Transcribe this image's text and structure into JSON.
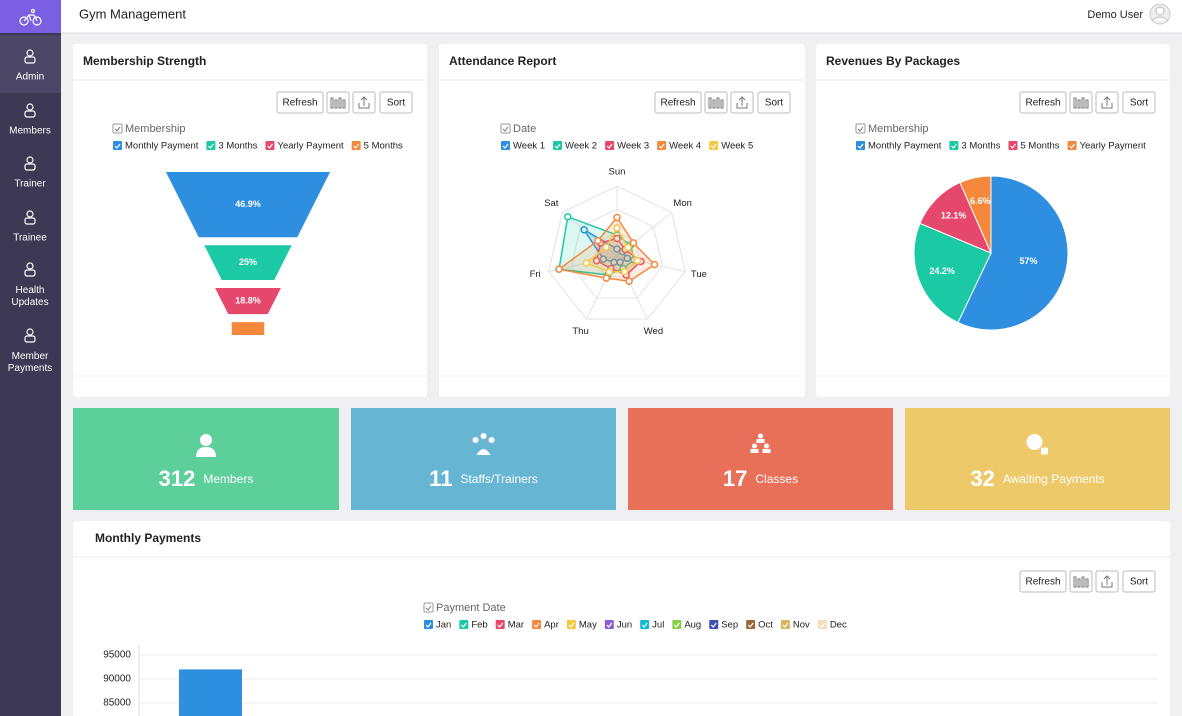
{
  "app": {
    "title": "Gym Management",
    "user": "Demo User"
  },
  "sidebar": [
    {
      "label": "Admin",
      "active": true
    },
    {
      "label": "Members",
      "active": false
    },
    {
      "label": "Trainer",
      "active": false
    },
    {
      "label": "Trainee",
      "active": false
    },
    {
      "label": "Health Updates",
      "active": false
    },
    {
      "label": "Member Payments",
      "active": false
    }
  ],
  "toolbars": [
    [
      "Refresh",
      "Sort"
    ],
    [
      "Refresh",
      "Sort"
    ],
    [
      "Refresh",
      "Sort"
    ],
    [
      "Refresh",
      "Sort"
    ]
  ],
  "chart_data": [
    {
      "type": "funnel",
      "title": "Membership Strength",
      "legend_title": "Membership",
      "categories": [
        "Monthly Payment",
        "3 Months",
        "Yearly Payment",
        "5 Months"
      ],
      "colors": [
        "#2e8ee0",
        "#1cc9a5",
        "#e5486c",
        "#f6883d"
      ],
      "values": [
        46.9,
        25,
        18.8,
        9.3
      ],
      "value_labels": [
        "46.9%",
        "25%",
        "18.8%",
        null
      ]
    },
    {
      "type": "radar",
      "title": "Attendance Report",
      "legend_title": "Date",
      "categories": [
        "Sun",
        "Mon",
        "Tue",
        "Wed",
        "Thu",
        "Fri",
        "Sat"
      ],
      "rlim": [
        0,
        100
      ],
      "series": [
        {
          "name": "Week 1",
          "color": "#2e8ee0",
          "values": [
            10,
            10,
            15,
            10,
            10,
            20,
            60
          ]
        },
        {
          "name": "Week 2",
          "color": "#1cc9a5",
          "values": [
            30,
            25,
            25,
            20,
            30,
            85,
            90
          ]
        },
        {
          "name": "Week 3",
          "color": "#e5486c",
          "values": [
            25,
            15,
            35,
            30,
            20,
            30,
            30
          ]
        },
        {
          "name": "Week 4",
          "color": "#f6883d",
          "values": [
            55,
            30,
            55,
            40,
            35,
            85,
            35
          ]
        },
        {
          "name": "Week 5",
          "color": "#f6c744",
          "values": [
            40,
            20,
            30,
            25,
            25,
            45,
            20
          ]
        }
      ]
    },
    {
      "type": "pie",
      "title": "Revenues By Packages",
      "legend_title": "Membership",
      "categories": [
        "Monthly Payment",
        "3 Months",
        "5 Months",
        "Yearly Payment"
      ],
      "colors": [
        "#2e8ee0",
        "#1cc9a5",
        "#e5486c",
        "#f6883d"
      ],
      "values": [
        57,
        24.2,
        12.1,
        6.6
      ],
      "value_labels": [
        "57%",
        "24.2%",
        "12.1%",
        "6.6%"
      ]
    },
    {
      "type": "bar",
      "title": "Monthly Payments",
      "legend_title": "Payment Date",
      "ylim": [
        85000,
        95000
      ],
      "yticks": [
        85000,
        90000,
        95000
      ],
      "grid": true,
      "series": [
        {
          "name": "Jan",
          "color": "#2e8ee0",
          "values": [
            92000
          ]
        },
        {
          "name": "Feb",
          "color": "#1cc9a5",
          "values": [
            null
          ]
        },
        {
          "name": "Mar",
          "color": "#e5486c",
          "values": [
            null
          ]
        },
        {
          "name": "Apr",
          "color": "#f6883d",
          "values": [
            null
          ]
        },
        {
          "name": "May",
          "color": "#f6c744",
          "values": [
            null
          ]
        },
        {
          "name": "Jun",
          "color": "#8b5dd6",
          "values": [
            null
          ]
        },
        {
          "name": "Jul",
          "color": "#16b9d4",
          "values": [
            null
          ]
        },
        {
          "name": "Aug",
          "color": "#8ad04c",
          "values": [
            null
          ]
        },
        {
          "name": "Sep",
          "color": "#3f51b5",
          "values": [
            null
          ]
        },
        {
          "name": "Oct",
          "color": "#9a6a3a",
          "values": [
            null
          ]
        },
        {
          "name": "Nov",
          "color": "#d8b65e",
          "values": [
            null
          ]
        },
        {
          "name": "Dec",
          "color": "#f3dcb8",
          "values": [
            null
          ]
        }
      ]
    }
  ],
  "stats": [
    {
      "value": 312,
      "label": "Members",
      "color": "#5ccf9b"
    },
    {
      "value": 11,
      "label": "Staffs/Trainers",
      "color": "#65b5d3"
    },
    {
      "value": 17,
      "label": "Classes",
      "color": "#e87058"
    },
    {
      "value": 32,
      "label": "Awaiting Payments",
      "color": "#edc96a"
    }
  ]
}
